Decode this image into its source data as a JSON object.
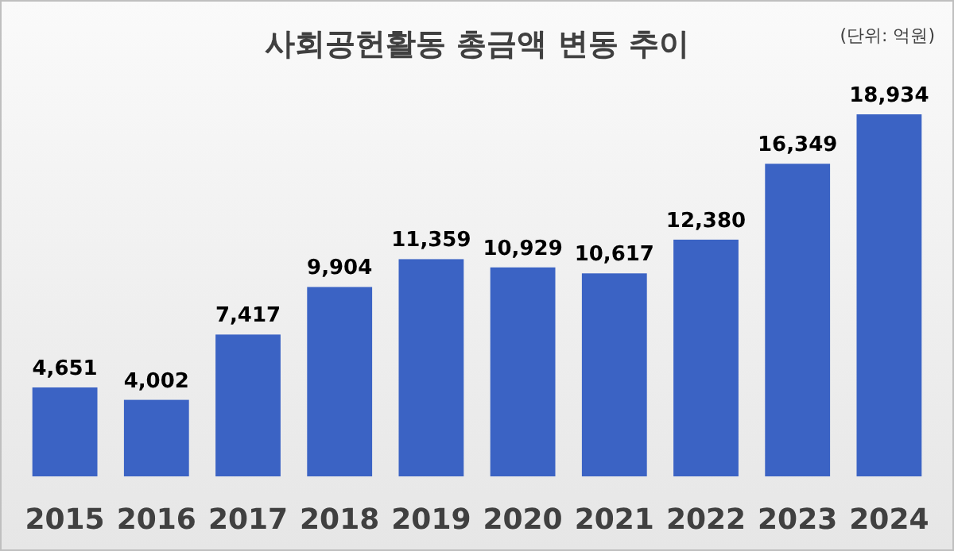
{
  "chart_data": {
    "type": "bar",
    "title": "사회공헌활동 총금액 변동 추이",
    "annotations": [
      "(단위: 억원)"
    ],
    "categories": [
      "2015",
      "2016",
      "2017",
      "2018",
      "2019",
      "2020",
      "2021",
      "2022",
      "2023",
      "2024"
    ],
    "values": [
      4651,
      4002,
      7417,
      9904,
      11359,
      10929,
      10617,
      12380,
      16349,
      18934
    ],
    "value_labels": [
      "4,651",
      "4,002",
      "7,417",
      "9,904",
      "11,359",
      "10,929",
      "10,617",
      "12,380",
      "16,349",
      "18,934"
    ],
    "color": "#3b63c4"
  }
}
